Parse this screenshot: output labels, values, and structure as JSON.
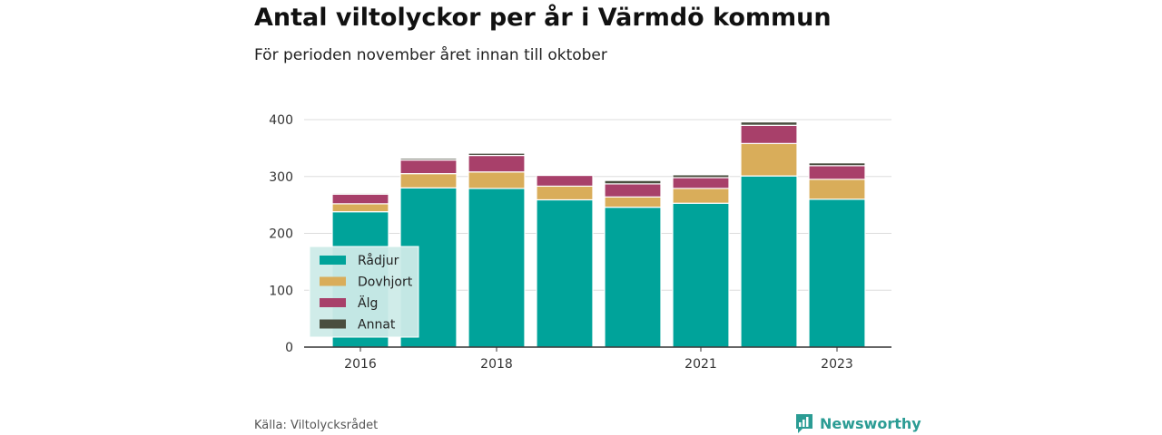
{
  "header": {
    "title": "Antal viltolyckor per år i Värmdö kommun",
    "subtitle": "För perioden november året innan till oktober"
  },
  "footer": {
    "source": "Källa: Viltolycksrådet",
    "brand": "Newsworthy",
    "brand_icon": "newsworthy-chart-icon"
  },
  "colors": {
    "Rådjur": "#00a39a",
    "Dovhjort": "#d9ad5a",
    "Älg": "#a8406a",
    "Annat": "#4a4e3f",
    "grid": "#dddddd",
    "legend_bg": "#cdebe8"
  },
  "chart_data": {
    "type": "bar",
    "stacked": true,
    "categories": [
      "2016",
      "2017",
      "2018",
      "2019",
      "2020",
      "2021",
      "2022",
      "2023"
    ],
    "xticks": [
      "2016",
      "2018",
      "2021",
      "2023"
    ],
    "series": [
      {
        "name": "Rådjur",
        "values": [
          238,
          280,
          279,
          259,
          246,
          253,
          301,
          260
        ]
      },
      {
        "name": "Dovhjort",
        "values": [
          14,
          25,
          29,
          24,
          18,
          26,
          57,
          35
        ]
      },
      {
        "name": "Älg",
        "values": [
          17,
          24,
          29,
          19,
          23,
          19,
          32,
          24
        ]
      },
      {
        "name": "Annat",
        "values": [
          2,
          3,
          4,
          1,
          6,
          5,
          6,
          5
        ]
      }
    ],
    "ylim": [
      0,
      400
    ],
    "yticks": [
      0,
      100,
      200,
      300,
      400
    ],
    "grid": true,
    "legend_position": "bottom-left"
  }
}
